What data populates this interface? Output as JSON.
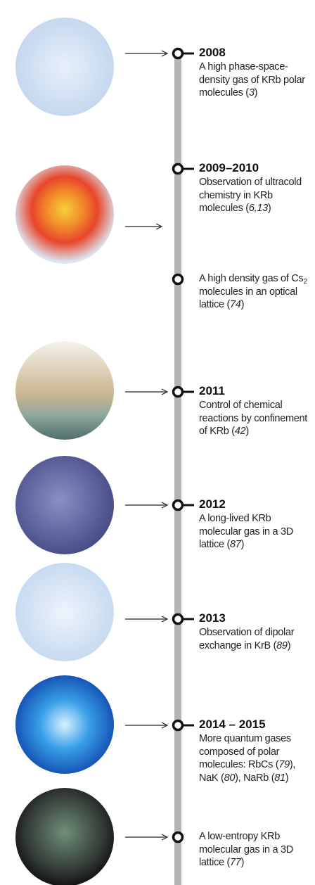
{
  "items": [
    {
      "year": "2008",
      "description": [
        {
          "text": "A high phase-space-density gas of KRb polar molecules ("
        },
        {
          "text": "3",
          "italic": true
        },
        {
          "text": ")"
        }
      ]
    },
    {
      "year": "2009–2010",
      "description": [
        {
          "text": "Observation of ultracold chemistry in KRb molecules ("
        },
        {
          "text": "6,13",
          "italic": true
        },
        {
          "text": ")"
        }
      ]
    },
    {
      "description": [
        {
          "text": "A high density gas of Cs"
        },
        {
          "text": "2",
          "sub": true
        },
        {
          "text": " molecules in an optical lattice ("
        },
        {
          "text": "74",
          "italic": true
        },
        {
          "text": ")"
        }
      ]
    },
    {
      "year": "2011",
      "description": [
        {
          "text": "Control of chemical reactions by confinement of KRb ("
        },
        {
          "text": "42",
          "italic": true
        },
        {
          "text": ")"
        }
      ]
    },
    {
      "year": "2012",
      "description": [
        {
          "text": "A long-lived KRb molecular gas in a 3D lattice ("
        },
        {
          "text": "87",
          "italic": true
        },
        {
          "text": ")"
        }
      ]
    },
    {
      "year": "2013",
      "description": [
        {
          "text": "Observation of dipolar exchange in KrB ("
        },
        {
          "text": "89",
          "italic": true
        },
        {
          "text": ")"
        }
      ]
    },
    {
      "year": "2014 – 2015",
      "description": [
        {
          "text": "More quantum gases composed of polar molecules: RbCs ("
        },
        {
          "text": "79",
          "italic": true
        },
        {
          "text": "), NaK ("
        },
        {
          "text": "80",
          "italic": true
        },
        {
          "text": "), NaRb ("
        },
        {
          "text": "81",
          "italic": true
        },
        {
          "text": ")"
        }
      ]
    },
    {
      "description": [
        {
          "text": "A low-entropy KRb molecular gas in a 3D lattice ("
        },
        {
          "text": "77",
          "italic": true
        },
        {
          "text": ")"
        }
      ]
    }
  ]
}
